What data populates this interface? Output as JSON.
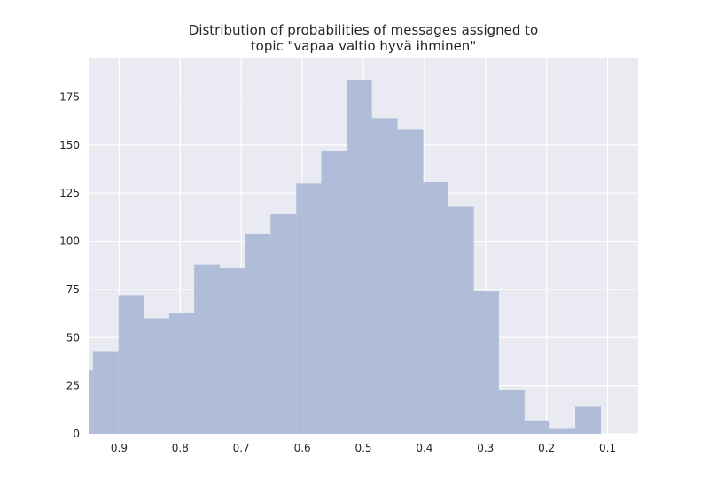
{
  "chart_data": {
    "type": "bar",
    "title_lines": [
      "Distribution of probabilities of messages assigned to",
      "topic \"vapaa valtio hyvä ihminen\""
    ],
    "x_reversed": true,
    "xlim": [
      0.05,
      0.95
    ],
    "ylim": [
      0,
      195
    ],
    "xticks": [
      0.9,
      0.8,
      0.7,
      0.6,
      0.5,
      0.4,
      0.3,
      0.2,
      0.1
    ],
    "xtick_labels": [
      "0.9",
      "0.8",
      "0.7",
      "0.6",
      "0.5",
      "0.4",
      "0.3",
      "0.2",
      "0.1"
    ],
    "yticks": [
      0,
      25,
      50,
      75,
      100,
      125,
      150,
      175
    ],
    "ytick_labels": [
      "0",
      "25",
      "50",
      "75",
      "100",
      "125",
      "150",
      "175"
    ],
    "bin_edges": [
      0.956,
      0.943,
      0.901,
      0.86,
      0.818,
      0.777,
      0.735,
      0.693,
      0.652,
      0.61,
      0.569,
      0.527,
      0.486,
      0.444,
      0.402,
      0.361,
      0.319,
      0.278,
      0.236,
      0.195,
      0.153,
      0.111
    ],
    "values": [
      33,
      43,
      72,
      60,
      63,
      88,
      86,
      104,
      114,
      130,
      147,
      184,
      164,
      158,
      131,
      118,
      74,
      23,
      7,
      3,
      14
    ],
    "grid": true,
    "colors": {
      "bar": "#a9b8d6",
      "plot_bg": "#eaeaf2",
      "grid": "#ffffff",
      "text": "#262626"
    }
  }
}
